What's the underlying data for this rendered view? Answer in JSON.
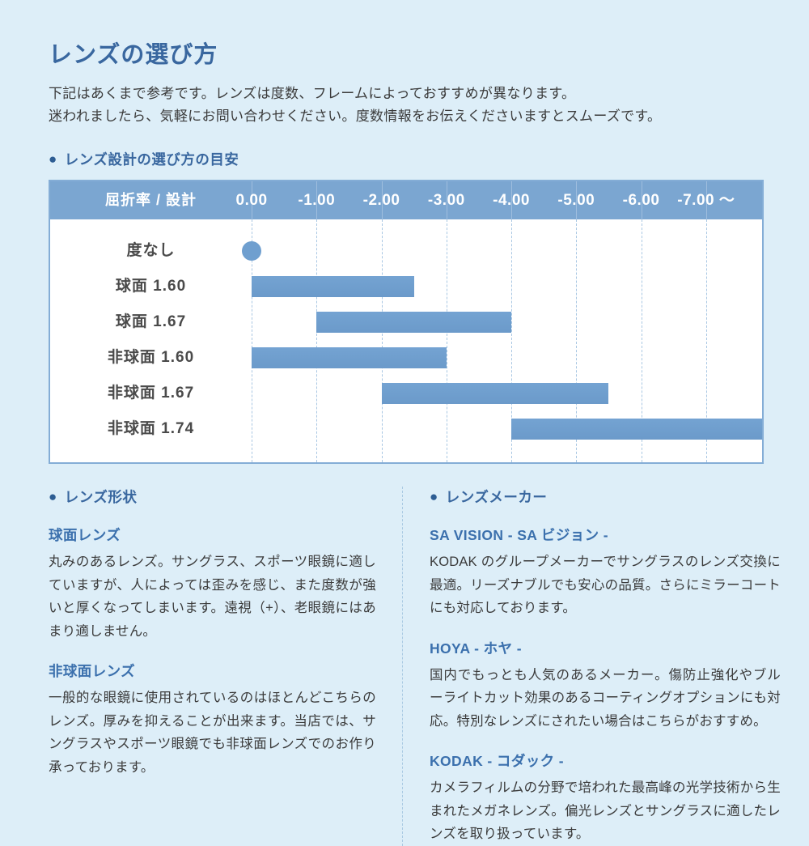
{
  "page": {
    "title": "レンズの選び方",
    "intro_line1": "下記はあくまで参考です。レンズは度数、フレームによっておすすめが異なります。",
    "intro_line2": "迷われましたら、気軽にお問い合わせください。度数情報をお伝えくださいますとスムーズです。"
  },
  "colors": {
    "background": "#ddeef8",
    "accent_blue": "#39679f",
    "subhead_blue": "#3b70ad",
    "text": "#3b3b3b",
    "divider": "#a9c9e2"
  },
  "chart_section": {
    "bullet": "●",
    "heading": "レンズ設計の選び方の目安"
  },
  "chart_data": {
    "type": "bar",
    "orientation": "horizontal-range",
    "title": "レンズ設計の選び方の目安",
    "header_label": "屈折率 / 設計",
    "x_tick_labels": [
      "0.00",
      "-1.00",
      "-2.00",
      "-3.00",
      "-4.00",
      "-5.00",
      "-6.00",
      "-7.00 ～"
    ],
    "x_tick_values": [
      0,
      -1,
      -2,
      -3,
      -4,
      -5,
      -6,
      -7
    ],
    "xlim": [
      0,
      -7.9
    ],
    "grid": "dashed-vertical",
    "rows": [
      {
        "label": "度なし",
        "mark": "dot",
        "value": 0
      },
      {
        "label": "球面 1.60",
        "mark": "bar",
        "from": 0,
        "to": -2.5
      },
      {
        "label": "球面 1.67",
        "mark": "bar",
        "from": -1,
        "to": -4
      },
      {
        "label": "非球面 1.60",
        "mark": "bar",
        "from": 0,
        "to": -3
      },
      {
        "label": "非球面 1.67",
        "mark": "bar",
        "from": -2,
        "to": -5.5
      },
      {
        "label": "非球面 1.74",
        "mark": "bar",
        "from": -4,
        "to": -7.9,
        "to_edge": true
      }
    ],
    "layout": {
      "label_col_pct": 28.3,
      "tick_step_pct": 9.12
    },
    "colors": {
      "header_bg": "#7ba6d1",
      "header_text": "#ffffff",
      "bar": "#6f9fcf",
      "grid": "#a9c7e3",
      "border": "#84add6",
      "row_label": "#4a4a4a"
    }
  },
  "shape_section": {
    "bullet": "●",
    "heading": "レンズ形状",
    "items": [
      {
        "title": "球面レンズ",
        "body": "丸みのあるレンズ。サングラス、スポーツ眼鏡に適していますが、人によっては歪みを感じ、また度数が強いと厚くなってしまいます。遠視（+）、老眼鏡にはあまり適しません。"
      },
      {
        "title": "非球面レンズ",
        "body": "一般的な眼鏡に使用されているのはほとんどこちらのレンズ。厚みを抑えることが出来ます。当店では、サングラスやスポーツ眼鏡でも非球面レンズでのお作り承っております。"
      }
    ]
  },
  "maker_section": {
    "bullet": "●",
    "heading": "レンズメーカー",
    "items": [
      {
        "title": "SA VISION - SA ビジョン -",
        "body": "KODAK のグループメーカーでサングラスのレンズ交換に最適。リーズナブルでも安心の品質。さらにミラーコートにも対応しております。"
      },
      {
        "title": "HOYA - ホヤ -",
        "body": "国内でもっとも人気のあるメーカー。傷防止強化やブルーライトカット効果のあるコーティングオプションにも対応。特別なレンズにされたい場合はこちらがおすすめ。"
      },
      {
        "title": "KODAK - コダック -",
        "body": "カメラフィルムの分野で培われた最高峰の光学技術から生まれたメガネレンズ。偏光レンズとサングラスに適したレンズを取り扱っています。"
      }
    ]
  }
}
